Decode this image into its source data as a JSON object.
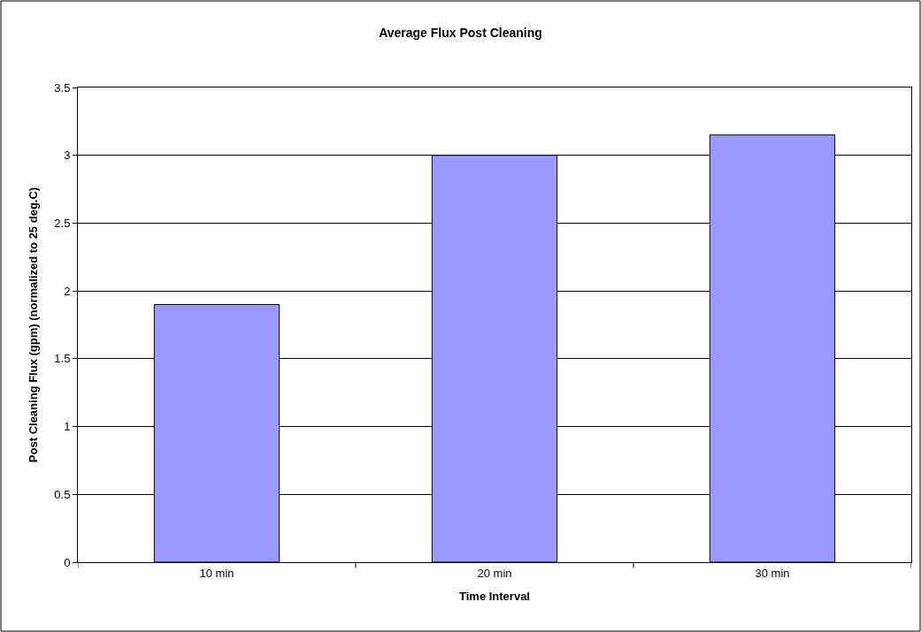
{
  "chart_data": {
    "type": "bar",
    "title": "Average Flux Post Cleaning",
    "xlabel": "Time Interval",
    "ylabel": "Post Cleaning Flux (gpm) (normalized to 25 deg.C)",
    "categories": [
      "10 min",
      "20 min",
      "30 min"
    ],
    "values": [
      1.9,
      3.0,
      3.15
    ],
    "color": "#9999ff",
    "ylim": [
      0,
      3.5
    ],
    "yticks": [
      0,
      0.5,
      1,
      1.5,
      2,
      2.5,
      3,
      3.5
    ],
    "grid": "y"
  }
}
